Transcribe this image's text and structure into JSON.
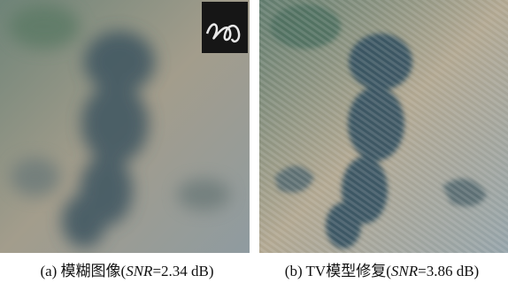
{
  "figures": [
    {
      "caption_prefix": "(a) 模糊图像(",
      "caption_italic": "SNR",
      "caption_suffix": "=2.34 dB)"
    },
    {
      "caption_prefix": "(b) TV模型修复(",
      "caption_italic": "SNR",
      "caption_suffix": "=3.86 dB)"
    }
  ]
}
